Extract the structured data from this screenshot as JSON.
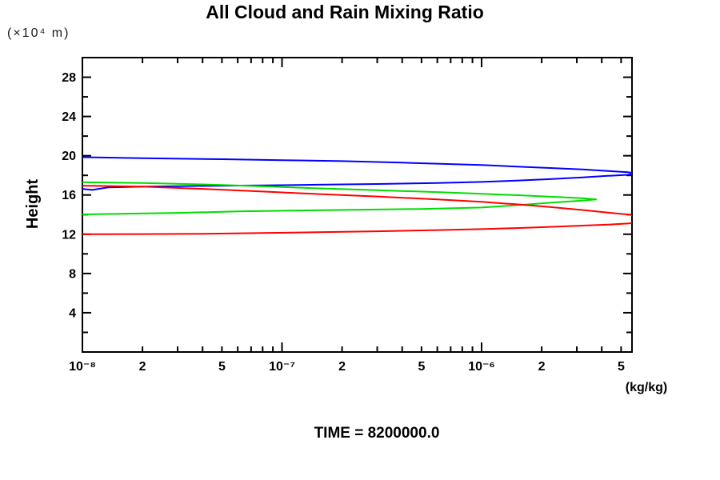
{
  "header": {
    "title": "All Cloud and Rain Mixing Ratio"
  },
  "axes": {
    "y_unit": "(×10⁴ m)",
    "y_label": "Height",
    "x_unit": "(kg/kg)"
  },
  "footer": {
    "time_text": "TIME = 8200000.0"
  },
  "chart_data": {
    "type": "line",
    "title": "All Cloud and Rain Mixing Ratio",
    "xlabel": "(kg/kg)",
    "ylabel": "Height (×10⁴ m)",
    "footer_annotation": "TIME = 8200000.0",
    "x_scale": "log",
    "xlim": [
      1e-08,
      5.67e-06
    ],
    "ylim": [
      0,
      30
    ],
    "grid": false,
    "legend": "none",
    "frame_color": "#000000",
    "x_major_ticks": [
      1e-08,
      1e-07,
      1e-06
    ],
    "x_minor_ticks": [
      2e-08,
      3e-08,
      4e-08,
      5e-08,
      6e-08,
      7e-08,
      8e-08,
      9e-08,
      2e-07,
      3e-07,
      4e-07,
      5e-07,
      6e-07,
      7e-07,
      8e-07,
      9e-07,
      2e-06,
      3e-06,
      4e-06,
      5e-06
    ],
    "x_tick_labels": [
      {
        "v": 1e-08,
        "label": "10⁻⁸"
      },
      {
        "v": 2e-08,
        "label": "2"
      },
      {
        "v": 5e-08,
        "label": "5"
      },
      {
        "v": 1e-07,
        "label": "10⁻⁷"
      },
      {
        "v": 2e-07,
        "label": "2"
      },
      {
        "v": 5e-07,
        "label": "5"
      },
      {
        "v": 1e-06,
        "label": "10⁻⁶"
      },
      {
        "v": 2e-06,
        "label": "2"
      },
      {
        "v": 5e-06,
        "label": "5"
      }
    ],
    "y_major_ticks": [
      4,
      8,
      12,
      16,
      20,
      24,
      28
    ],
    "y_minor_ticks": [
      2,
      6,
      10,
      14,
      18,
      22,
      26,
      30
    ],
    "y_tick_labels": [
      {
        "v": 4,
        "label": "4"
      },
      {
        "v": 8,
        "label": "8"
      },
      {
        "v": 12,
        "label": "12"
      },
      {
        "v": 16,
        "label": "16"
      },
      {
        "v": 20,
        "label": "20"
      },
      {
        "v": 24,
        "label": "24"
      },
      {
        "v": 28,
        "label": "28"
      }
    ],
    "series": [
      {
        "name": "blue-profile",
        "color": "#0000ff",
        "points": [
          [
            1e-08,
            19.85
          ],
          [
            2e-08,
            19.75
          ],
          [
            5e-08,
            19.65
          ],
          [
            1e-07,
            19.55
          ],
          [
            2e-07,
            19.45
          ],
          [
            4e-07,
            19.3
          ],
          [
            7e-07,
            19.15
          ],
          [
            1e-06,
            19.05
          ],
          [
            1.5e-06,
            18.9
          ],
          [
            2.2e-06,
            18.75
          ],
          [
            3.2e-06,
            18.6
          ],
          [
            4.3e-06,
            18.45
          ],
          [
            5.4e-06,
            18.33
          ],
          [
            5.9e-06,
            18.2
          ],
          [
            5.4e-06,
            18.06
          ],
          [
            4.3e-06,
            17.95
          ],
          [
            3.2e-06,
            17.8
          ],
          [
            2.2e-06,
            17.62
          ],
          [
            1.5e-06,
            17.47
          ],
          [
            1e-06,
            17.33
          ],
          [
            6e-07,
            17.22
          ],
          [
            3e-07,
            17.12
          ],
          [
            1.5e-07,
            17.05
          ],
          [
            8e-08,
            16.98
          ],
          [
            4e-08,
            16.92
          ],
          [
            2e-08,
            16.85
          ],
          [
            1.35e-08,
            16.78
          ],
          [
            1.12e-08,
            16.52
          ],
          [
            1e-08,
            16.62
          ]
        ]
      },
      {
        "name": "green-profile",
        "color": "#00dd00",
        "points": [
          [
            1e-08,
            17.3
          ],
          [
            2e-08,
            17.22
          ],
          [
            4e-08,
            17.08
          ],
          [
            8e-08,
            16.88
          ],
          [
            1.5e-07,
            16.68
          ],
          [
            3e-07,
            16.48
          ],
          [
            6e-07,
            16.3
          ],
          [
            1e-06,
            16.12
          ],
          [
            1.6e-06,
            15.96
          ],
          [
            2.4e-06,
            15.8
          ],
          [
            3.2e-06,
            15.68
          ],
          [
            3.75e-06,
            15.55
          ],
          [
            3.2e-06,
            15.42
          ],
          [
            2.4e-06,
            15.27
          ],
          [
            1.6e-06,
            15.0
          ],
          [
            1e-06,
            14.72
          ],
          [
            5e-07,
            14.58
          ],
          [
            2.5e-07,
            14.5
          ],
          [
            1.2e-07,
            14.42
          ],
          [
            6e-08,
            14.32
          ],
          [
            3e-08,
            14.18
          ],
          [
            1e-08,
            14.02
          ]
        ]
      },
      {
        "name": "red-profile",
        "color": "#ff0000",
        "points": [
          [
            1e-08,
            16.95
          ],
          [
            2e-08,
            16.85
          ],
          [
            4e-08,
            16.62
          ],
          [
            8e-08,
            16.35
          ],
          [
            1.5e-07,
            16.1
          ],
          [
            3e-07,
            15.85
          ],
          [
            6e-07,
            15.55
          ],
          [
            1e-06,
            15.3
          ],
          [
            1.5e-06,
            15.05
          ],
          [
            2.2e-06,
            14.77
          ],
          [
            3.2e-06,
            14.47
          ],
          [
            4.3e-06,
            14.2
          ],
          [
            5.5e-06,
            14.0
          ],
          [
            6.6e-06,
            13.55
          ],
          [
            5.5e-06,
            13.1
          ],
          [
            4.3e-06,
            12.98
          ],
          [
            3.2e-06,
            12.88
          ],
          [
            2.2e-06,
            12.75
          ],
          [
            1.5e-06,
            12.63
          ],
          [
            1e-06,
            12.52
          ],
          [
            6e-07,
            12.42
          ],
          [
            3e-07,
            12.3
          ],
          [
            1.5e-07,
            12.2
          ],
          [
            8e-08,
            12.12
          ],
          [
            4e-08,
            12.05
          ],
          [
            2e-08,
            12.02
          ],
          [
            1e-08,
            12.0
          ]
        ]
      }
    ]
  }
}
